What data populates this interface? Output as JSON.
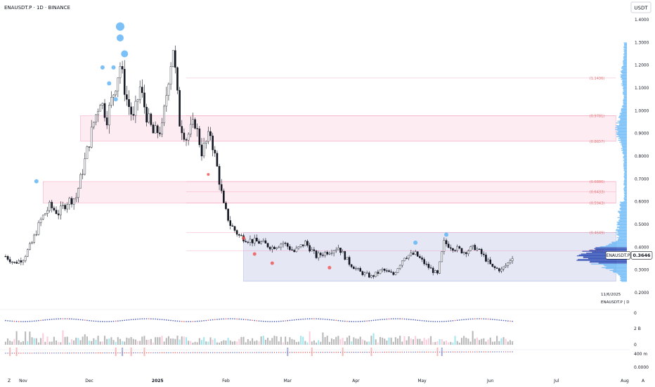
{
  "header": {
    "title": "ENAUSDT.P · 1D · BINANCE",
    "currency": "USDT"
  },
  "last_price": {
    "label": "ENAUSDT.P",
    "value": "0.3646"
  },
  "info": {
    "date": "11/6/2025",
    "symbol_interval": "ENAUSDT.P | D"
  },
  "colors": {
    "up": "#ffffff",
    "down": "#131722",
    "accent": "#2962ff",
    "bubble": "#64b5f6",
    "red_dot": "#ef5350",
    "zone_pink": "#f8bbd0",
    "zone_blue": "#c5cae9"
  },
  "indicator_labels": {
    "ind1": "0",
    "ind2_top": "2 B",
    "ind2_bottom": "0",
    "ind3_top": "400 m",
    "ind3_bottom": "0.0000"
  },
  "corner": {
    "left": "Z",
    "right": "A"
  },
  "chart_data": {
    "type": "candlestick",
    "symbol": "ENAUSDT.P",
    "interval": "1D",
    "exchange": "BINANCE",
    "y_axis": {
      "min": 0.2,
      "max": 1.4,
      "ticks": [
        "0.2000",
        "0.3000",
        "0.4000",
        "0.5000",
        "0.6000",
        "0.7000",
        "0.8000",
        "0.9000",
        "1.0000",
        "1.1000",
        "1.2000",
        "1.3000",
        "1.4000"
      ]
    },
    "x_axis": {
      "labels": [
        {
          "label": "Nov",
          "date": "2024-11-01"
        },
        {
          "label": "Dec",
          "date": "2024-12-01"
        },
        {
          "label": "2025",
          "date": "2025-01-01"
        },
        {
          "label": "Feb",
          "date": "2025-02-01"
        },
        {
          "label": "Mar",
          "date": "2025-03-01"
        },
        {
          "label": "Apr",
          "date": "2025-04-01"
        },
        {
          "label": "May",
          "date": "2025-05-01"
        },
        {
          "label": "Jun",
          "date": "2025-06-01"
        },
        {
          "label": "Jul",
          "date": "2025-07-01"
        },
        {
          "label": "Aug",
          "date": "2025-08-01"
        }
      ]
    },
    "price_path": [
      [
        "2024-10-24",
        0.36
      ],
      [
        "2024-10-28",
        0.33
      ],
      [
        "2024-11-01",
        0.35
      ],
      [
        "2024-11-05",
        0.42
      ],
      [
        "2024-11-09",
        0.52
      ],
      [
        "2024-11-13",
        0.58
      ],
      [
        "2024-11-17",
        0.55
      ],
      [
        "2024-11-21",
        0.6
      ],
      [
        "2024-11-25",
        0.62
      ],
      [
        "2024-11-29",
        0.78
      ],
      [
        "2024-12-03",
        0.95
      ],
      [
        "2024-12-06",
        1.05
      ],
      [
        "2024-12-09",
        0.97
      ],
      [
        "2024-12-12",
        1.08
      ],
      [
        "2024-12-15",
        1.2
      ],
      [
        "2024-12-18",
        1.05
      ],
      [
        "2024-12-21",
        0.96
      ],
      [
        "2024-12-24",
        1.1
      ],
      [
        "2024-12-27",
        0.98
      ],
      [
        "2024-12-30",
        0.9
      ],
      [
        "2025-01-03",
        0.92
      ],
      [
        "2025-01-06",
        1.15
      ],
      [
        "2025-01-08",
        1.28
      ],
      [
        "2025-01-11",
        0.95
      ],
      [
        "2025-01-14",
        0.88
      ],
      [
        "2025-01-18",
        0.95
      ],
      [
        "2025-01-21",
        0.82
      ],
      [
        "2025-01-25",
        0.9
      ],
      [
        "2025-01-28",
        0.75
      ],
      [
        "2025-01-31",
        0.58
      ],
      [
        "2025-02-03",
        0.5
      ],
      [
        "2025-02-07",
        0.45
      ],
      [
        "2025-02-12",
        0.43
      ],
      [
        "2025-02-17",
        0.42
      ],
      [
        "2025-02-22",
        0.4
      ],
      [
        "2025-02-27",
        0.42
      ],
      [
        "2025-03-04",
        0.38
      ],
      [
        "2025-03-09",
        0.42
      ],
      [
        "2025-03-14",
        0.36
      ],
      [
        "2025-03-19",
        0.38
      ],
      [
        "2025-03-24",
        0.4
      ],
      [
        "2025-03-29",
        0.33
      ],
      [
        "2025-04-03",
        0.29
      ],
      [
        "2025-04-08",
        0.27
      ],
      [
        "2025-04-13",
        0.3
      ],
      [
        "2025-04-18",
        0.28
      ],
      [
        "2025-04-23",
        0.36
      ],
      [
        "2025-04-28",
        0.37
      ],
      [
        "2025-05-03",
        0.32
      ],
      [
        "2025-05-08",
        0.28
      ],
      [
        "2025-05-11",
        0.42
      ],
      [
        "2025-05-15",
        0.4
      ],
      [
        "2025-05-20",
        0.38
      ],
      [
        "2025-05-25",
        0.4
      ],
      [
        "2025-05-29",
        0.36
      ],
      [
        "2025-06-02",
        0.31
      ],
      [
        "2025-06-06",
        0.3
      ],
      [
        "2025-06-09",
        0.33
      ],
      [
        "2025-06-11",
        0.36
      ]
    ],
    "levels": [
      {
        "label": "(1.1436)",
        "value": 1.1436
      },
      {
        "label": "(0.9781)",
        "value": 0.9781
      },
      {
        "label": "(0.8657)",
        "value": 0.8657
      },
      {
        "label": "(0.6886)",
        "value": 0.6886
      },
      {
        "label": "(0.6433)",
        "value": 0.6433
      },
      {
        "label": "(0.5943)",
        "value": 0.5943
      },
      {
        "label": "(0.4649)",
        "value": 0.4649
      },
      {
        "label": "(0.3849)",
        "value": 0.3849
      }
    ],
    "zones": [
      {
        "from": "2024-11-27",
        "to": "2025-07-28",
        "low": 0.8657,
        "high": 0.9781,
        "color": "pink"
      },
      {
        "from": "2024-11-10",
        "to": "2025-07-28",
        "low": 0.5943,
        "high": 0.6886,
        "color": "pink"
      },
      {
        "from": "2025-02-09",
        "to": "2025-07-28",
        "low": 0.25,
        "high": 0.4649,
        "color": "blue"
      }
    ],
    "bubbles": [
      [
        "2024-12-15",
        1.37,
        6
      ],
      [
        "2024-12-15",
        1.32,
        5
      ],
      [
        "2024-12-17",
        1.25,
        5
      ],
      [
        "2024-12-12",
        1.19,
        3
      ],
      [
        "2024-12-10",
        1.12,
        3
      ],
      [
        "2024-12-07",
        1.19,
        3
      ],
      [
        "2024-12-13",
        1.05,
        3
      ],
      [
        "2024-11-07",
        0.69,
        3
      ],
      [
        "2025-04-28",
        0.42,
        3
      ],
      [
        "2025-05-12",
        0.455,
        3
      ]
    ],
    "red_markers": [
      [
        "2025-02-09",
        0.44,
        2.5
      ],
      [
        "2025-02-14",
        0.37,
        2.5
      ],
      [
        "2025-02-22",
        0.33,
        2.5
      ],
      [
        "2025-03-20",
        0.31,
        2.5
      ],
      [
        "2025-01-24",
        0.72,
        2
      ]
    ],
    "last_price": 0.3646
  }
}
